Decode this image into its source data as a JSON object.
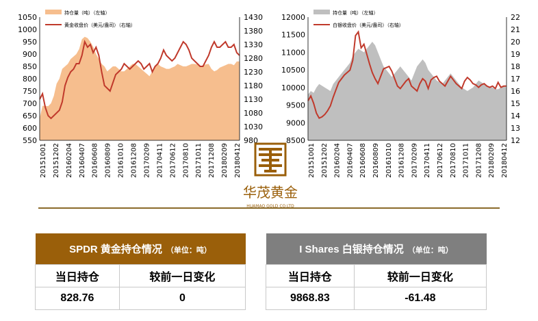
{
  "chart_data": [
    {
      "type": "area+line",
      "legend": [
        "持仓量（吨）（左轴）",
        "黄金收盘价（美元/盎司）（右轴）"
      ],
      "colors": {
        "area": "#f6be8e",
        "line": "#c0392b"
      },
      "yleft_ticks": [
        "1050",
        "1000",
        "950",
        "900",
        "850",
        "800",
        "750",
        "700",
        "650",
        "600",
        "550"
      ],
      "yright_ticks": [
        "1430",
        "1380",
        "1330",
        "1280",
        "1230",
        "1180",
        "1130",
        "1080",
        "1030",
        "980"
      ],
      "yleft_lim": [
        550,
        1050
      ],
      "yright_lim": [
        980,
        1430
      ],
      "x_ticks": [
        "20151001",
        "20151202",
        "20160204",
        "20160407",
        "20160608",
        "20160809",
        "20161010",
        "20161208",
        "20170209",
        "20170411",
        "20170612",
        "20170810",
        "20171011",
        "20171208",
        "20180209",
        "20180412"
      ],
      "area_values": [
        640,
        690,
        690,
        688,
        700,
        730,
        780,
        800,
        840,
        850,
        860,
        880,
        890,
        900,
        920,
        960,
        970,
        965,
        950,
        930,
        900,
        880,
        860,
        850,
        830,
        840,
        850,
        850,
        840,
        830,
        830,
        840,
        850,
        860,
        860,
        850,
        840,
        830,
        820,
        810,
        830,
        850,
        860,
        850,
        845,
        840,
        840,
        845,
        850,
        860,
        855,
        850,
        850,
        855,
        860,
        860,
        858,
        850,
        855,
        858,
        860,
        840,
        830,
        835,
        845,
        850,
        855,
        860,
        860,
        855,
        870,
        870
      ],
      "line_values": [
        1130,
        1150,
        1100,
        1070,
        1060,
        1070,
        1080,
        1090,
        1120,
        1180,
        1210,
        1230,
        1240,
        1260,
        1260,
        1290,
        1340,
        1320,
        1330,
        1300,
        1320,
        1290,
        1230,
        1180,
        1170,
        1160,
        1190,
        1220,
        1230,
        1240,
        1260,
        1250,
        1240,
        1250,
        1260,
        1270,
        1260,
        1240,
        1250,
        1260,
        1230,
        1250,
        1260,
        1280,
        1310,
        1290,
        1280,
        1270,
        1280,
        1300,
        1320,
        1340,
        1330,
        1310,
        1280,
        1270,
        1260,
        1250,
        1250,
        1270,
        1290,
        1320,
        1340,
        1320,
        1320,
        1330,
        1340,
        1320,
        1320,
        1330,
        1300,
        1290
      ]
    },
    {
      "type": "area+line",
      "legend": [
        "持仓量（吨）（左轴）",
        "白银收盘价（美元/盎司）（右轴）"
      ],
      "colors": {
        "area": "#bfbfbf",
        "line": "#c0392b"
      },
      "yleft_ticks": [
        "12000",
        "11500",
        "11000",
        "10500",
        "10000",
        "9500",
        "9000",
        "8500"
      ],
      "yright_ticks": [
        "22",
        "21",
        "20",
        "19",
        "18",
        "17",
        "16",
        "15",
        "14",
        "13",
        "12"
      ],
      "yleft_lim": [
        8500,
        12000
      ],
      "yright_lim": [
        12,
        22
      ],
      "x_ticks": [
        "20151001",
        "20151202",
        "20160204",
        "20160407",
        "20160608",
        "20160809",
        "20161010",
        "20161208",
        "20170209",
        "20170411",
        "20170612",
        "20170810",
        "20171011",
        "20171208",
        "20180209",
        "20180412"
      ],
      "area_values": [
        9800,
        9900,
        9850,
        10000,
        10100,
        10050,
        10000,
        9950,
        9900,
        10100,
        10200,
        10300,
        10400,
        10500,
        10600,
        10700,
        10900,
        11000,
        11100,
        11050,
        11000,
        11100,
        11200,
        11300,
        11200,
        11000,
        10800,
        10600,
        10500,
        10400,
        10300,
        10400,
        10500,
        10600,
        10500,
        10400,
        10300,
        10200,
        10400,
        10600,
        10700,
        10800,
        10700,
        10500,
        10400,
        10300,
        10200,
        10150,
        10100,
        10200,
        10300,
        10400,
        10300,
        10200,
        10100,
        10000,
        9950,
        9900,
        9950,
        10000,
        10100,
        10200,
        10150,
        10100,
        10050,
        10000,
        10000,
        9950,
        9950,
        10000,
        10050,
        10000
      ],
      "line_values": [
        15.2,
        15.6,
        15.0,
        14.2,
        13.8,
        13.9,
        14.1,
        14.4,
        14.8,
        15.5,
        16.1,
        16.7,
        17.0,
        17.3,
        17.5,
        17.7,
        18.5,
        20.5,
        20.8,
        19.5,
        19.8,
        19.0,
        18.2,
        17.5,
        17.0,
        16.6,
        17.2,
        17.8,
        17.9,
        18.0,
        17.6,
        17.0,
        16.4,
        16.2,
        16.5,
        16.8,
        17.0,
        16.4,
        16.2,
        16.0,
        16.6,
        17.0,
        16.8,
        16.2,
        16.9,
        17.1,
        17.2,
        16.8,
        16.6,
        16.4,
        16.8,
        17.2,
        16.9,
        16.6,
        16.4,
        16.2,
        16.8,
        17.1,
        16.9,
        16.6,
        16.5,
        16.3,
        16.5,
        16.6,
        16.4,
        16.3,
        16.4,
        16.2,
        16.7,
        16.3,
        16.4,
        16.4
      ]
    }
  ],
  "logo": {
    "title": "华茂黄金",
    "subtitle": "HUAMAO GOLD CO.LTD"
  },
  "gold_table": {
    "title": "SPDR 黄金持仓情况",
    "unit": "（单位：吨）",
    "col1": "当日持仓",
    "col2": "较前一日变化",
    "val1": "828.76",
    "val2": "0"
  },
  "silver_table": {
    "title": "I Shares 白银持仓情况",
    "unit": "（单位：吨）",
    "col1": "当日持仓",
    "col2": "较前一日变化",
    "val1": "9868.83",
    "val2": "-61.48"
  }
}
